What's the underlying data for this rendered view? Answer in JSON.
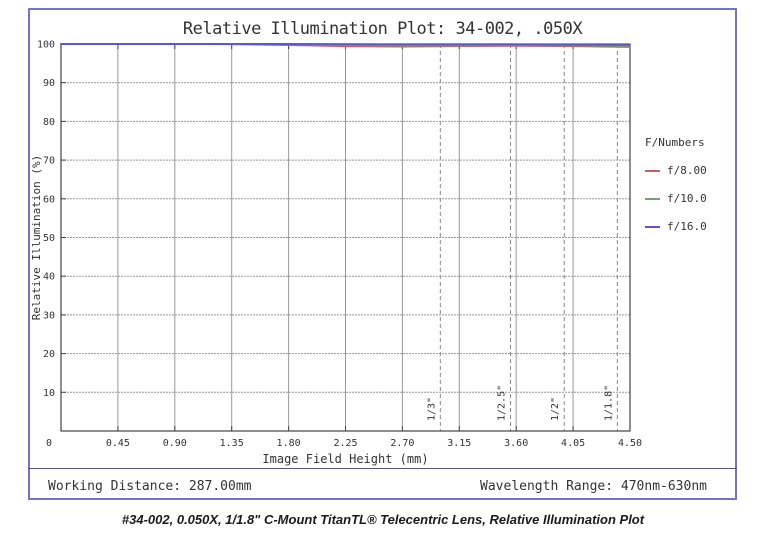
{
  "title": "Relative Illumination Plot: 34-002, .050X",
  "caption": "#34-002, 0.050X, 1/1.8\" C-Mount TitanTL® Telecentric Lens, Relative Illumination Plot",
  "footer": {
    "left": "Working Distance: 287.00mm",
    "right": "Wavelength Range: 470nm-630nm"
  },
  "legend": {
    "title": "F/Numbers",
    "items": [
      {
        "label": "f/8.00",
        "color": "#c85f5f"
      },
      {
        "label": "f/10.0",
        "color": "#68a868"
      },
      {
        "label": "f/16.0",
        "color": "#5858d0"
      }
    ]
  },
  "colors": {
    "frame_border": "#7373c9",
    "grid": "#999999",
    "axis": "#444444",
    "marker_line": "#888888",
    "tick_text": "#333333"
  },
  "chart_data": {
    "type": "line",
    "title": "Relative Illumination Plot: 34-002, .050X",
    "xlabel": "Image Field Height (mm)",
    "ylabel": "Relative Illumination (%)",
    "xlim": [
      0,
      4.5
    ],
    "ylim": [
      0,
      100
    ],
    "grid": true,
    "legend_position": "right-outside",
    "x_tick_labels": [
      "0",
      "0.45",
      "0.90",
      "1.35",
      "1.80",
      "2.25",
      "2.70",
      "3.15",
      "3.60",
      "4.05",
      "4.50"
    ],
    "x_tick_values": [
      0,
      0.45,
      0.9,
      1.35,
      1.8,
      2.25,
      2.7,
      3.15,
      3.6,
      4.05,
      4.5
    ],
    "y_tick_values": [
      0,
      10,
      20,
      30,
      40,
      50,
      60,
      70,
      80,
      90,
      100
    ],
    "x": [
      0,
      0.45,
      0.9,
      1.35,
      1.8,
      2.25,
      2.7,
      3.15,
      3.6,
      4.05,
      4.5
    ],
    "series": [
      {
        "name": "f/8.00",
        "color": "#c85f5f",
        "values": [
          100,
          100,
          100,
          99.9,
          99.7,
          99.4,
          99.3,
          99.4,
          99.5,
          99.4,
          99.2
        ]
      },
      {
        "name": "f/10.0",
        "color": "#68a868",
        "values": [
          100,
          100,
          100,
          100,
          99.9,
          99.7,
          99.6,
          99.6,
          99.7,
          99.6,
          99.5
        ]
      },
      {
        "name": "f/16.0",
        "color": "#5858d0",
        "values": [
          100,
          100,
          100,
          100,
          100,
          99.95,
          99.9,
          99.9,
          99.9,
          99.85,
          99.8
        ]
      }
    ],
    "sensor_markers": [
      {
        "label": "1/3\"",
        "x": 3.0
      },
      {
        "label": "1/2.5\"",
        "x": 3.555
      },
      {
        "label": "1/2\"",
        "x": 3.98
      },
      {
        "label": "1/1.8\"",
        "x": 4.4
      }
    ]
  }
}
